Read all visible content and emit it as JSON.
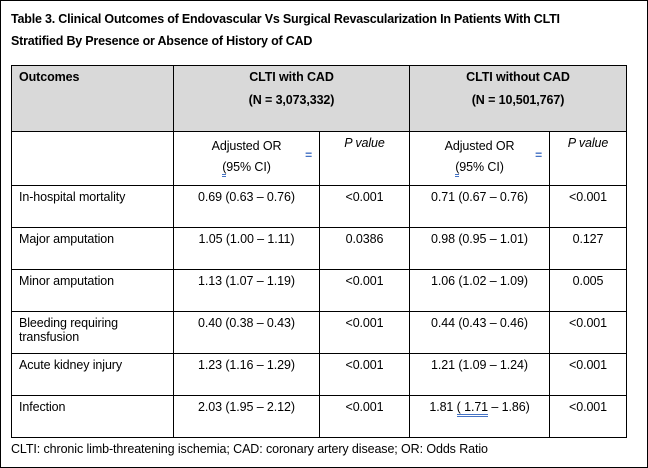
{
  "title_lines": [
    "Table 3. Clinical Outcomes of Endovascular Vs Surgical Revascularization In Patients With CLTI",
    "Stratified By Presence or Absence of History of CAD"
  ],
  "table": {
    "header": {
      "outcomes": "Outcomes",
      "groups": [
        {
          "label": "CLTI with CAD",
          "n": "(N = 3,073,332)"
        },
        {
          "label": "CLTI without CAD",
          "n": "(N = 10,501,767)"
        }
      ],
      "adjusted_or": "Adjusted OR",
      "ci_open": "(",
      "ci_rest": "95% CI)",
      "p_value": "P value",
      "tracked_mark": "="
    },
    "rows": [
      {
        "outcome": "In-hospital mortality",
        "or_cad": "0.69 (0.63 – 0.76)",
        "p_cad": "<0.001",
        "or_nocad": "0.71 (0.67 – 0.76)",
        "p_nocad": "<0.001"
      },
      {
        "outcome": "Major amputation",
        "or_cad": "1.05 (1.00 – 1.11)",
        "p_cad": "0.0386",
        "or_nocad": "0.98 (0.95 – 1.01)",
        "p_nocad": "0.127"
      },
      {
        "outcome": "Minor amputation",
        "or_cad": "1.13 (1.07 – 1.19)",
        "p_cad": "<0.001",
        "or_nocad": "1.06 (1.02 – 1.09)",
        "p_nocad": "0.005"
      },
      {
        "outcome": "Bleeding requiring transfusion",
        "or_cad": "0.40 (0.38 – 0.43)",
        "p_cad": "<0.001",
        "or_nocad": "0.44 (0.43 – 0.46)",
        "p_nocad": "<0.001"
      },
      {
        "outcome": "Acute kidney injury",
        "or_cad": "1.23 (1.16 – 1.29)",
        "p_cad": "<0.001",
        "or_nocad": "1.21 (1.09 – 1.24)",
        "p_nocad": "<0.001"
      },
      {
        "outcome": "Infection",
        "or_cad": "2.03 (1.95 – 2.12)",
        "p_cad": "<0.001",
        "or_nocad": {
          "prefix": "1.81 ",
          "tracked": "( 1.71",
          "suffix": " – 1.86)"
        },
        "p_nocad": "<0.001"
      }
    ],
    "footnote": "CLTI: chronic limb-threatening ischemia; CAD: coronary artery disease; OR: Odds Ratio"
  },
  "colors": {
    "header_shading": "#d9d9d9",
    "tracked_change_blue": "#4472c4",
    "border": "#000000"
  }
}
